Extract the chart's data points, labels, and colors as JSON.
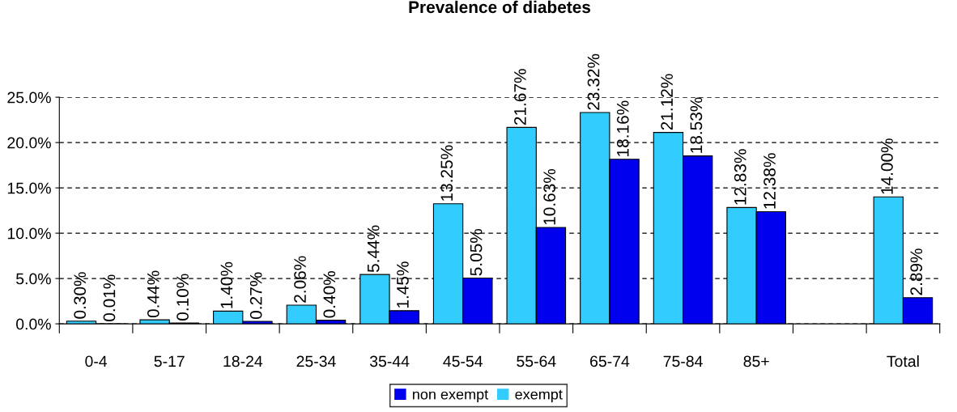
{
  "chart_data": {
    "type": "bar",
    "title": "Prevalence of diabetes",
    "categories": [
      "0-4",
      "5-17",
      "18-24",
      "25-34",
      "35-44",
      "45-54",
      "55-64",
      "65-74",
      "75-84",
      "85+",
      null,
      "Total"
    ],
    "series": [
      {
        "name": "exempt",
        "color": "#33ccff",
        "values": [
          0.3,
          0.44,
          1.4,
          2.06,
          5.44,
          13.25,
          21.67,
          23.32,
          21.12,
          12.83,
          null,
          14.0
        ],
        "value_labels": [
          "0.30%",
          "0.44%",
          "1.40%",
          "2.06%",
          "5.44%",
          "13.25%",
          "21.67%",
          "23.32%",
          "21.12%",
          "12.83%",
          null,
          "14.00%"
        ]
      },
      {
        "name": "non exempt",
        "color": "#0000ee",
        "values": [
          0.01,
          0.1,
          0.27,
          0.4,
          1.45,
          5.05,
          10.63,
          18.16,
          18.53,
          12.38,
          null,
          2.89
        ],
        "value_labels": [
          "0.01%",
          "0.10%",
          "0.27%",
          "0.40%",
          "1.45%",
          "5.05%",
          "10.63%",
          "18.16%",
          "18.53%",
          "12.38%",
          null,
          "2.89%"
        ]
      }
    ],
    "ylim": [
      0,
      25
    ],
    "yticks": [
      {
        "value": 0,
        "label": "0.0%"
      },
      {
        "value": 5,
        "label": "5.0%"
      },
      {
        "value": 10,
        "label": "10.0%"
      },
      {
        "value": 15,
        "label": "15.0%"
      },
      {
        "value": 20,
        "label": "20.0%"
      },
      {
        "value": 25,
        "label": "25.0%"
      }
    ],
    "grid": "y",
    "legend": "bottom"
  }
}
